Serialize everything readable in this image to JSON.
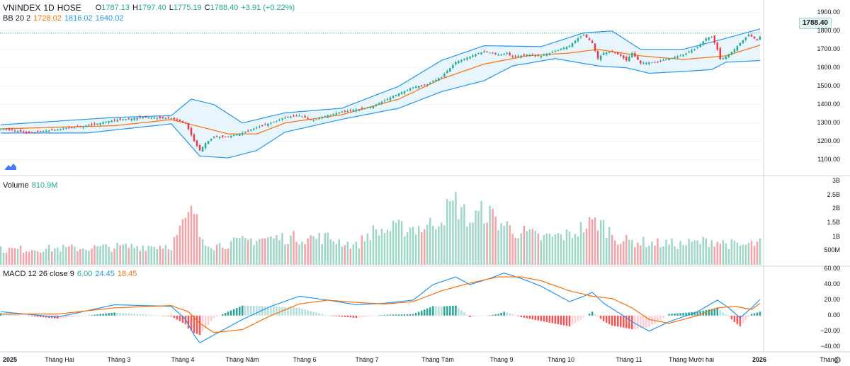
{
  "header": {
    "symbol": "VNINDEX",
    "interval": "1D",
    "exchange": "HOSE",
    "open_label": "O",
    "open": "1787.13",
    "high_label": "H",
    "high": "1797.40",
    "low_label": "L",
    "low": "1775.19",
    "close_label": "C",
    "close": "1788.40",
    "change": "+3.91 (+0.22%)"
  },
  "bb_legend": {
    "name": "BB 20 2",
    "basis": "1728.02",
    "upper": "1816.02",
    "lower": "1640.02"
  },
  "volume_legend": {
    "name": "Volume",
    "value": "810.9M"
  },
  "macd_legend": {
    "name": "MACD 12 26 close 9",
    "hist": "6.00",
    "macd": "24.45",
    "signal": "18.45"
  },
  "last_price_label": "1788.40",
  "price_axis": [
    "1900.00",
    "1800.00",
    "1700.00",
    "1600.00",
    "1500.00",
    "1400.00",
    "1300.00",
    "1200.00",
    "1100.00"
  ],
  "volume_axis": [
    "3B",
    "2.5B",
    "2B",
    "1.5B",
    "1B",
    "500M"
  ],
  "macd_axis": [
    "60.00",
    "40.00",
    "20.00",
    "0.00",
    "−20.00",
    "−40.00"
  ],
  "time_axis": [
    {
      "label": "2025",
      "bold": true
    },
    {
      "label": "Tháng Hai",
      "bold": false
    },
    {
      "label": "Tháng 3",
      "bold": false
    },
    {
      "label": "Tháng 4",
      "bold": false
    },
    {
      "label": "Tháng Năm",
      "bold": false
    },
    {
      "label": "Tháng 6",
      "bold": false
    },
    {
      "label": "Tháng 7",
      "bold": false
    },
    {
      "label": "Tháng Tám",
      "bold": false
    },
    {
      "label": "Tháng 9",
      "bold": false
    },
    {
      "label": "Tháng 10",
      "bold": false
    },
    {
      "label": "Tháng 11",
      "bold": false
    },
    {
      "label": "Tháng Mười hai",
      "bold": false
    },
    {
      "label": "2026",
      "bold": true
    },
    {
      "label": "Tháng",
      "bold": false
    }
  ],
  "colors": {
    "up": "#22ab94",
    "down": "#f23645",
    "bb_line": "#2196f3",
    "basis": "#ff6d00",
    "bb_fill": "#e3f2fd",
    "vol_up": "#9ed7c6",
    "vol_down": "#f4a3a8",
    "macd": "#2196f3",
    "signal": "#ff6d00",
    "grid": "#f0f3fa"
  },
  "chart_data": {
    "type": "candlestick",
    "title": "VNINDEX 1D HOSE",
    "series_keypoints": {
      "close": [
        [
          0,
          1270
        ],
        [
          10,
          1245
        ],
        [
          20,
          1265
        ],
        [
          30,
          1285
        ],
        [
          40,
          1315
        ],
        [
          50,
          1330
        ],
        [
          60,
          1325
        ],
        [
          65,
          1300
        ],
        [
          68,
          1200
        ],
        [
          70,
          1150
        ],
        [
          72,
          1190
        ],
        [
          75,
          1225
        ],
        [
          80,
          1225
        ],
        [
          85,
          1245
        ],
        [
          90,
          1275
        ],
        [
          95,
          1300
        ],
        [
          100,
          1330
        ],
        [
          105,
          1340
        ],
        [
          110,
          1315
        ],
        [
          115,
          1340
        ],
        [
          120,
          1360
        ],
        [
          130,
          1385
        ],
        [
          140,
          1460
        ],
        [
          145,
          1495
        ],
        [
          150,
          1510
        ],
        [
          155,
          1550
        ],
        [
          160,
          1630
        ],
        [
          165,
          1660
        ],
        [
          170,
          1690
        ],
        [
          175,
          1670
        ],
        [
          178,
          1680
        ],
        [
          180,
          1660
        ],
        [
          185,
          1670
        ],
        [
          190,
          1665
        ],
        [
          195,
          1690
        ],
        [
          200,
          1720
        ],
        [
          203,
          1760
        ],
        [
          205,
          1780
        ],
        [
          208,
          1735
        ],
        [
          210,
          1650
        ],
        [
          212,
          1680
        ],
        [
          215,
          1690
        ],
        [
          218,
          1665
        ],
        [
          220,
          1640
        ],
        [
          222,
          1680
        ],
        [
          225,
          1625
        ],
        [
          230,
          1630
        ],
        [
          235,
          1650
        ],
        [
          240,
          1670
        ],
        [
          245,
          1710
        ],
        [
          248,
          1760
        ],
        [
          250,
          1770
        ],
        [
          252,
          1700
        ],
        [
          253,
          1645
        ],
        [
          255,
          1660
        ],
        [
          258,
          1700
        ],
        [
          260,
          1735
        ],
        [
          263,
          1780
        ],
        [
          266,
          1750
        ],
        [
          268,
          1788
        ]
      ],
      "volume_millions": [
        [
          0,
          560
        ],
        [
          30,
          620
        ],
        [
          60,
          720
        ],
        [
          65,
          1600
        ],
        [
          68,
          2000
        ],
        [
          70,
          1100
        ],
        [
          75,
          700
        ],
        [
          90,
          950
        ],
        [
          100,
          1000
        ],
        [
          115,
          1000
        ],
        [
          125,
          700
        ],
        [
          130,
          1200
        ],
        [
          140,
          1350
        ],
        [
          150,
          1400
        ],
        [
          155,
          1800
        ],
        [
          160,
          2300
        ],
        [
          165,
          1600
        ],
        [
          170,
          2000
        ],
        [
          175,
          1600
        ],
        [
          180,
          1300
        ],
        [
          190,
          1000
        ],
        [
          200,
          1100
        ],
        [
          205,
          1400
        ],
        [
          210,
          1600
        ],
        [
          218,
          900
        ],
        [
          230,
          800
        ],
        [
          240,
          760
        ],
        [
          250,
          900
        ],
        [
          260,
          700
        ],
        [
          268,
          810
        ]
      ],
      "bb_upper": [
        [
          0,
          1290
        ],
        [
          40,
          1330
        ],
        [
          60,
          1340
        ],
        [
          67,
          1430
        ],
        [
          75,
          1400
        ],
        [
          85,
          1300
        ],
        [
          100,
          1355
        ],
        [
          120,
          1380
        ],
        [
          140,
          1500
        ],
        [
          155,
          1640
        ],
        [
          170,
          1720
        ],
        [
          190,
          1715
        ],
        [
          205,
          1790
        ],
        [
          215,
          1800
        ],
        [
          225,
          1700
        ],
        [
          240,
          1700
        ],
        [
          255,
          1760
        ],
        [
          268,
          1816
        ]
      ],
      "bb_lower": [
        [
          0,
          1245
        ],
        [
          30,
          1245
        ],
        [
          60,
          1295
        ],
        [
          70,
          1120
        ],
        [
          80,
          1110
        ],
        [
          90,
          1150
        ],
        [
          100,
          1250
        ],
        [
          120,
          1320
        ],
        [
          140,
          1380
        ],
        [
          155,
          1470
        ],
        [
          170,
          1530
        ],
        [
          180,
          1610
        ],
        [
          195,
          1650
        ],
        [
          210,
          1610
        ],
        [
          220,
          1600
        ],
        [
          228,
          1570
        ],
        [
          240,
          1580
        ],
        [
          250,
          1590
        ],
        [
          255,
          1630
        ],
        [
          268,
          1640
        ]
      ],
      "bb_basis": [
        [
          0,
          1268
        ],
        [
          40,
          1285
        ],
        [
          60,
          1318
        ],
        [
          70,
          1280
        ],
        [
          80,
          1240
        ],
        [
          90,
          1240
        ],
        [
          100,
          1300
        ],
        [
          120,
          1345
        ],
        [
          140,
          1430
        ],
        [
          155,
          1540
        ],
        [
          170,
          1620
        ],
        [
          185,
          1665
        ],
        [
          200,
          1680
        ],
        [
          210,
          1700
        ],
        [
          225,
          1665
        ],
        [
          240,
          1645
        ],
        [
          255,
          1665
        ],
        [
          268,
          1728
        ]
      ],
      "macd": [
        [
          0,
          5
        ],
        [
          20,
          -2
        ],
        [
          40,
          14
        ],
        [
          60,
          12
        ],
        [
          65,
          -5
        ],
        [
          68,
          -25
        ],
        [
          70,
          -35
        ],
        [
          75,
          -25
        ],
        [
          85,
          -5
        ],
        [
          95,
          12
        ],
        [
          105,
          25
        ],
        [
          115,
          20
        ],
        [
          125,
          14
        ],
        [
          135,
          16
        ],
        [
          145,
          20
        ],
        [
          152,
          40
        ],
        [
          160,
          50
        ],
        [
          165,
          40
        ],
        [
          172,
          48
        ],
        [
          177,
          55
        ],
        [
          183,
          48
        ],
        [
          190,
          38
        ],
        [
          200,
          18
        ],
        [
          205,
          25
        ],
        [
          208,
          30
        ],
        [
          212,
          16
        ],
        [
          218,
          2
        ],
        [
          223,
          -10
        ],
        [
          228,
          -20
        ],
        [
          235,
          -8
        ],
        [
          245,
          5
        ],
        [
          252,
          20
        ],
        [
          256,
          10
        ],
        [
          260,
          -3
        ],
        [
          264,
          10
        ],
        [
          268,
          24.45
        ]
      ],
      "signal": [
        [
          0,
          2
        ],
        [
          20,
          2
        ],
        [
          40,
          10
        ],
        [
          60,
          13
        ],
        [
          66,
          5
        ],
        [
          70,
          -10
        ],
        [
          75,
          -22
        ],
        [
          85,
          -18
        ],
        [
          95,
          0
        ],
        [
          105,
          15
        ],
        [
          115,
          20
        ],
        [
          125,
          17
        ],
        [
          135,
          15
        ],
        [
          145,
          18
        ],
        [
          155,
          32
        ],
        [
          165,
          42
        ],
        [
          175,
          50
        ],
        [
          183,
          50
        ],
        [
          190,
          45
        ],
        [
          200,
          32
        ],
        [
          208,
          25
        ],
        [
          215,
          22
        ],
        [
          222,
          10
        ],
        [
          228,
          -5
        ],
        [
          235,
          -10
        ],
        [
          245,
          0
        ],
        [
          252,
          10
        ],
        [
          258,
          12
        ],
        [
          264,
          8
        ],
        [
          268,
          18.45
        ]
      ]
    },
    "price_range": [
      1060,
      1930
    ],
    "volume_range_millions": [
      0,
      3100
    ],
    "macd_range": [
      -45,
      62
    ],
    "bars": 268
  }
}
